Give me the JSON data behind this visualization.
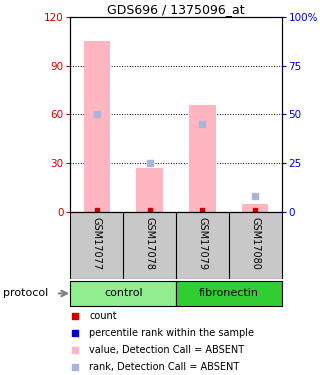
{
  "title": "GDS696 / 1375096_at",
  "samples": [
    "GSM17077",
    "GSM17078",
    "GSM17079",
    "GSM17080"
  ],
  "pink_bar_values": [
    105,
    27,
    66,
    5
  ],
  "blue_square_values": [
    50,
    25,
    45,
    8
  ],
  "ylim_left": [
    0,
    120
  ],
  "ylim_right": [
    0,
    100
  ],
  "left_yticks": [
    0,
    30,
    60,
    90,
    120
  ],
  "right_yticks": [
    0,
    25,
    50,
    75,
    100
  ],
  "right_yticklabels": [
    "0",
    "25",
    "50",
    "75",
    "100%"
  ],
  "left_tick_color": "#cc0000",
  "right_tick_color": "#0000cc",
  "bar_color_pink": "#FFB6C1",
  "bar_color_blue": "#aab4d8",
  "dot_color_red": "#cc0000",
  "dot_color_blue": "#0000cc",
  "background_sample": "#c8c8c8",
  "control_color": "#90EE90",
  "fibronectin_color": "#32CD32",
  "legend_items": [
    {
      "color": "#cc0000",
      "label": "count",
      "marker": "s"
    },
    {
      "color": "#0000cc",
      "label": "percentile rank within the sample",
      "marker": "s"
    },
    {
      "color": "#FFB6C1",
      "label": "value, Detection Call = ABSENT",
      "marker": "s"
    },
    {
      "color": "#aab4d8",
      "label": "rank, Detection Call = ABSENT",
      "marker": "s"
    }
  ]
}
